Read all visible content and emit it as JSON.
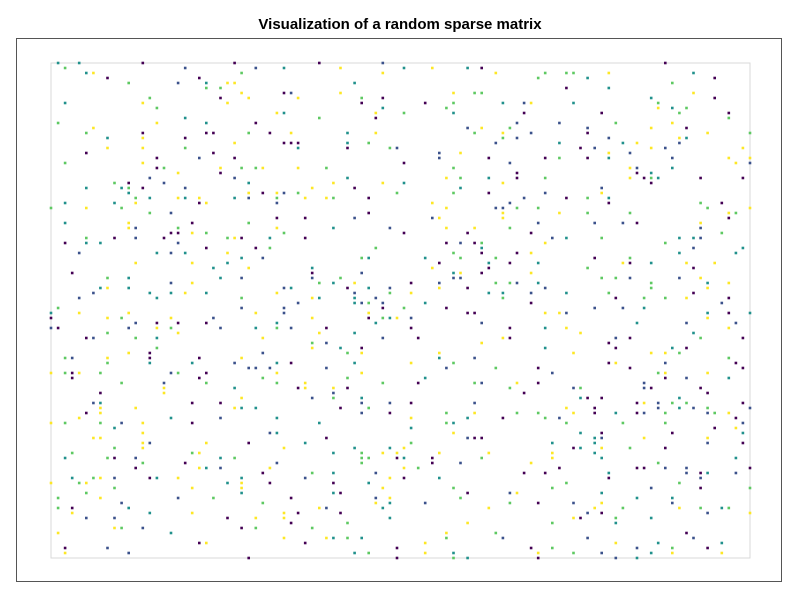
{
  "chart_data": {
    "type": "scatter",
    "title": "Visualization of a random sparse matrix",
    "grid": false,
    "legend": "none",
    "colormap": "viridis",
    "matrix_rows": 100,
    "matrix_cols": 100,
    "density": 0.1,
    "value_range": [
      0,
      1
    ],
    "colors": [
      "#440154",
      "#3b528b",
      "#21918c",
      "#5ec962",
      "#fde725"
    ],
    "seed": 42
  }
}
